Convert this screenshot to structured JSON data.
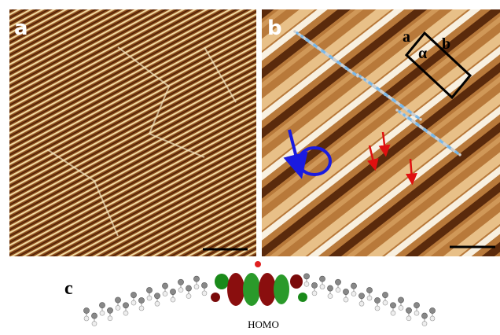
{
  "panels": [
    {
      "label": "a"
    },
    {
      "label": "b",
      "cell_labels": [
        "a",
        "b",
        "α"
      ]
    }
  ],
  "bottom": {
    "label": "c",
    "orbital": "HOMO"
  }
}
